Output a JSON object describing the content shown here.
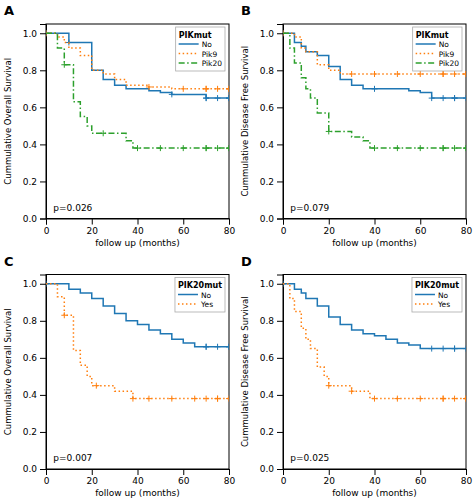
{
  "chart_data": [
    {
      "type": "step",
      "title": "A",
      "legend_title": "PIKmut",
      "ylabel": "Cummulative Overall Survival",
      "xlabel": "follow up (months)",
      "annotations": [
        "p=0.026"
      ],
      "xlim": [
        0,
        80
      ],
      "ylim": [
        0,
        1.05
      ],
      "xticks": [
        0,
        20,
        40,
        60,
        80
      ],
      "yticks": [
        {
          "value": 0.0,
          "label": "0.0"
        },
        0.2,
        0.4,
        0.6,
        0.8,
        {
          "value": 1.0,
          "label": "1.0"
        }
      ],
      "grid": false,
      "legend": "upper right",
      "marker": "plus",
      "series": [
        {
          "name": "No",
          "line_style": "solid",
          "x": [
            0,
            5,
            10,
            10,
            15,
            20,
            20,
            25,
            30,
            35,
            40,
            45,
            50,
            55,
            60,
            65,
            70,
            75,
            80
          ],
          "values": [
            1.0,
            1.0,
            1.0,
            0.95,
            0.95,
            0.88,
            0.8,
            0.75,
            0.72,
            0.7,
            0.7,
            0.69,
            0.68,
            0.67,
            0.67,
            0.67,
            0.65,
            0.65,
            0.65
          ]
        },
        {
          "name": "Pik9",
          "line_style": "dotted",
          "x": [
            0,
            3,
            5,
            8,
            10,
            15,
            20,
            25,
            30,
            35,
            40,
            45,
            50,
            55,
            60,
            65,
            70,
            75,
            80
          ],
          "values": [
            1.0,
            1.0,
            0.98,
            0.95,
            0.92,
            0.88,
            0.8,
            0.78,
            0.75,
            0.72,
            0.72,
            0.71,
            0.71,
            0.7,
            0.7,
            0.7,
            0.7,
            0.7,
            0.7
          ]
        },
        {
          "name": "Pik20",
          "line_style": "dashdot",
          "x": [
            0,
            5,
            8,
            10,
            12,
            15,
            18,
            20,
            25,
            30,
            35,
            38,
            40,
            45,
            50,
            55,
            60,
            65,
            70,
            75,
            80
          ],
          "values": [
            1.0,
            0.92,
            0.83,
            0.83,
            0.63,
            0.55,
            0.5,
            0.46,
            0.46,
            0.46,
            0.42,
            0.38,
            0.38,
            0.38,
            0.38,
            0.38,
            0.38,
            0.38,
            0.38,
            0.38,
            0.38
          ]
        }
      ]
    },
    {
      "type": "step",
      "title": "B",
      "legend_title": "PIKmut",
      "ylabel": "Cummulative Disease Free Survival",
      "xlabel": "follow up (months)",
      "annotations": [
        "p=0.079"
      ],
      "xlim": [
        0,
        80
      ],
      "ylim": [
        0,
        1.05
      ],
      "xticks": [
        0,
        20,
        40,
        60,
        80
      ],
      "yticks": [
        {
          "value": 0.0,
          "label": "0.0"
        },
        0.2,
        0.4,
        0.6,
        0.8,
        {
          "value": 1.0,
          "label": "1.0"
        }
      ],
      "grid": false,
      "legend": "upper right",
      "marker": "plus",
      "series": [
        {
          "name": "No",
          "line_style": "solid",
          "x": [
            0,
            3,
            5,
            8,
            10,
            15,
            20,
            25,
            30,
            35,
            40,
            45,
            50,
            55,
            60,
            65,
            70,
            75,
            80
          ],
          "values": [
            1.0,
            1.0,
            0.95,
            0.93,
            0.9,
            0.88,
            0.82,
            0.75,
            0.72,
            0.7,
            0.7,
            0.7,
            0.7,
            0.69,
            0.68,
            0.65,
            0.65,
            0.65,
            0.65
          ]
        },
        {
          "name": "Pik9",
          "line_style": "dotted",
          "x": [
            0,
            3,
            5,
            8,
            10,
            15,
            20,
            25,
            30,
            35,
            40,
            45,
            50,
            55,
            60,
            65,
            70,
            75,
            80
          ],
          "values": [
            1.0,
            1.0,
            0.98,
            0.92,
            0.9,
            0.83,
            0.8,
            0.78,
            0.78,
            0.78,
            0.78,
            0.78,
            0.78,
            0.78,
            0.78,
            0.78,
            0.78,
            0.78,
            0.78
          ]
        },
        {
          "name": "Pik20",
          "line_style": "dashdot",
          "x": [
            0,
            3,
            5,
            8,
            10,
            12,
            15,
            20,
            25,
            30,
            35,
            38,
            40,
            45,
            50,
            55,
            60,
            65,
            70,
            75,
            80
          ],
          "values": [
            1.0,
            0.92,
            0.84,
            0.76,
            0.7,
            0.65,
            0.57,
            0.47,
            0.47,
            0.44,
            0.42,
            0.38,
            0.38,
            0.38,
            0.38,
            0.38,
            0.38,
            0.38,
            0.38,
            0.38,
            0.38
          ]
        }
      ]
    },
    {
      "type": "step",
      "title": "C",
      "legend_title": "PIK20mut",
      "ylabel": "Cummulative Overall Survival",
      "xlabel": "follow up (months)",
      "annotations": [
        "p=0.007"
      ],
      "xlim": [
        0,
        80
      ],
      "ylim": [
        0,
        1.05
      ],
      "xticks": [
        0,
        20,
        40,
        60,
        80
      ],
      "yticks": [
        {
          "value": 0.0,
          "label": "0.0"
        },
        0.2,
        0.4,
        0.6,
        0.8,
        {
          "value": 1.0,
          "label": "1.0"
        }
      ],
      "grid": false,
      "legend": "upper right",
      "marker": "plus",
      "series": [
        {
          "name": "No",
          "line_style": "solid",
          "x": [
            0,
            5,
            10,
            15,
            20,
            25,
            30,
            35,
            40,
            45,
            50,
            55,
            60,
            65,
            70,
            75,
            80
          ],
          "values": [
            1.0,
            1.0,
            0.97,
            0.95,
            0.92,
            0.88,
            0.84,
            0.8,
            0.78,
            0.75,
            0.73,
            0.7,
            0.68,
            0.66,
            0.66,
            0.66,
            0.66
          ]
        },
        {
          "name": "Yes",
          "line_style": "dotted",
          "x": [
            0,
            5,
            8,
            10,
            12,
            15,
            18,
            20,
            22,
            25,
            30,
            35,
            38,
            40,
            45,
            50,
            55,
            60,
            65,
            70,
            75,
            80
          ],
          "values": [
            1.0,
            0.93,
            0.83,
            0.83,
            0.64,
            0.56,
            0.5,
            0.45,
            0.45,
            0.45,
            0.42,
            0.42,
            0.38,
            0.38,
            0.38,
            0.38,
            0.38,
            0.38,
            0.38,
            0.38,
            0.38,
            0.38
          ]
        }
      ]
    },
    {
      "type": "step",
      "title": "D",
      "legend_title": "PIK20mut",
      "ylabel": "Cummulative Disease Free Survival",
      "xlabel": "follow up (months)",
      "annotations": [
        "p=0.025"
      ],
      "xlim": [
        0,
        80
      ],
      "ylim": [
        0,
        1.05
      ],
      "xticks": [
        0,
        20,
        40,
        60,
        80
      ],
      "yticks": [
        {
          "value": 0.0,
          "label": "0.0"
        },
        0.2,
        0.4,
        0.6,
        0.8,
        {
          "value": 1.0,
          "label": "1.0"
        }
      ],
      "grid": false,
      "legend": "upper right",
      "marker": "plus",
      "series": [
        {
          "name": "No",
          "line_style": "solid",
          "x": [
            0,
            3,
            5,
            8,
            10,
            15,
            20,
            25,
            30,
            35,
            40,
            45,
            50,
            55,
            60,
            65,
            70,
            75,
            80
          ],
          "values": [
            1.0,
            1.0,
            0.97,
            0.95,
            0.92,
            0.88,
            0.82,
            0.78,
            0.75,
            0.73,
            0.72,
            0.7,
            0.68,
            0.67,
            0.65,
            0.65,
            0.65,
            0.65,
            0.65
          ]
        },
        {
          "name": "Yes",
          "line_style": "dotted",
          "x": [
            0,
            3,
            5,
            8,
            10,
            12,
            15,
            18,
            20,
            22,
            25,
            30,
            35,
            38,
            40,
            45,
            50,
            55,
            60,
            65,
            70,
            75,
            80
          ],
          "values": [
            1.0,
            0.92,
            0.85,
            0.76,
            0.7,
            0.65,
            0.55,
            0.5,
            0.45,
            0.45,
            0.45,
            0.42,
            0.42,
            0.38,
            0.38,
            0.38,
            0.38,
            0.38,
            0.38,
            0.38,
            0.38,
            0.38,
            0.38
          ]
        }
      ]
    }
  ]
}
